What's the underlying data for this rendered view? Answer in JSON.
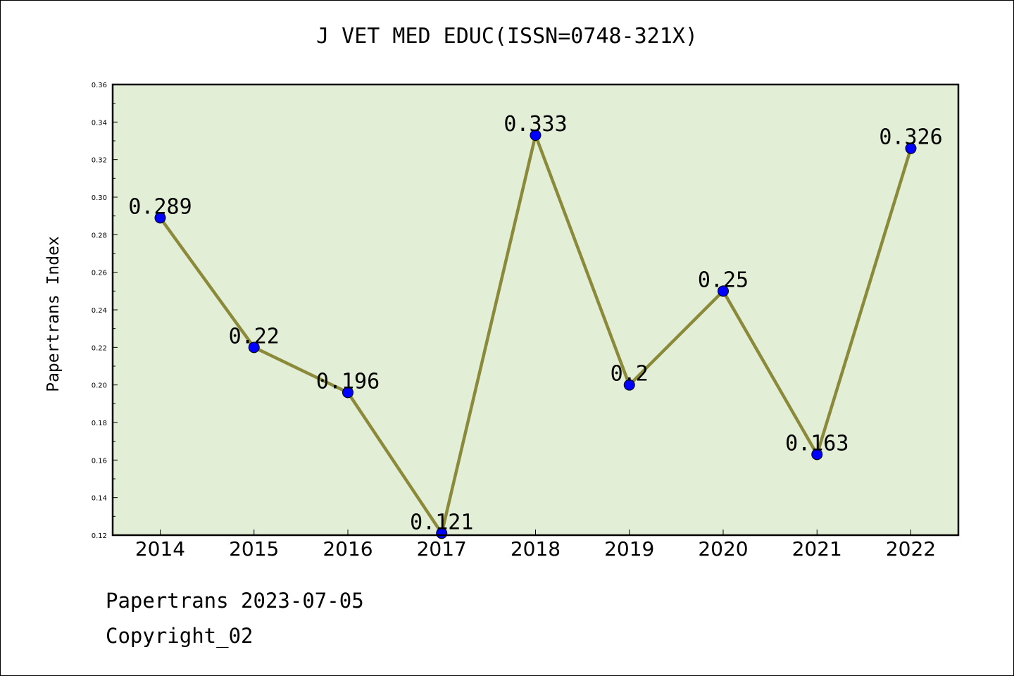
{
  "chart_data": {
    "type": "line",
    "title": "J VET MED EDUC(ISSN=0748-321X)",
    "xlabel": "",
    "ylabel": "Papertrans Index",
    "categories": [
      "2014",
      "2015",
      "2016",
      "2017",
      "2018",
      "2019",
      "2020",
      "2021",
      "2022"
    ],
    "values": [
      0.289,
      0.22,
      0.196,
      0.121,
      0.333,
      0.2,
      0.25,
      0.163,
      0.326
    ],
    "data_labels": [
      "0.289",
      "0.22",
      "0.196",
      "0.121",
      "0.333",
      "0.2",
      "0.25",
      "0.163",
      "0.326"
    ],
    "ylim": [
      0.12,
      0.36
    ],
    "yticks": [
      "0.12",
      "0.14",
      "0.16",
      "0.18",
      "0.20",
      "0.22",
      "0.24",
      "0.26",
      "0.28",
      "0.30",
      "0.32",
      "0.34",
      "0.36"
    ],
    "grid": false,
    "legend": "none",
    "colors": {
      "plot_background": "#e2efd6",
      "line": "#8b8a3a",
      "marker": "#0000ff"
    }
  },
  "footer": {
    "date_line": "Papertrans 2023-07-05",
    "copyright_line": "Copyright_02"
  }
}
